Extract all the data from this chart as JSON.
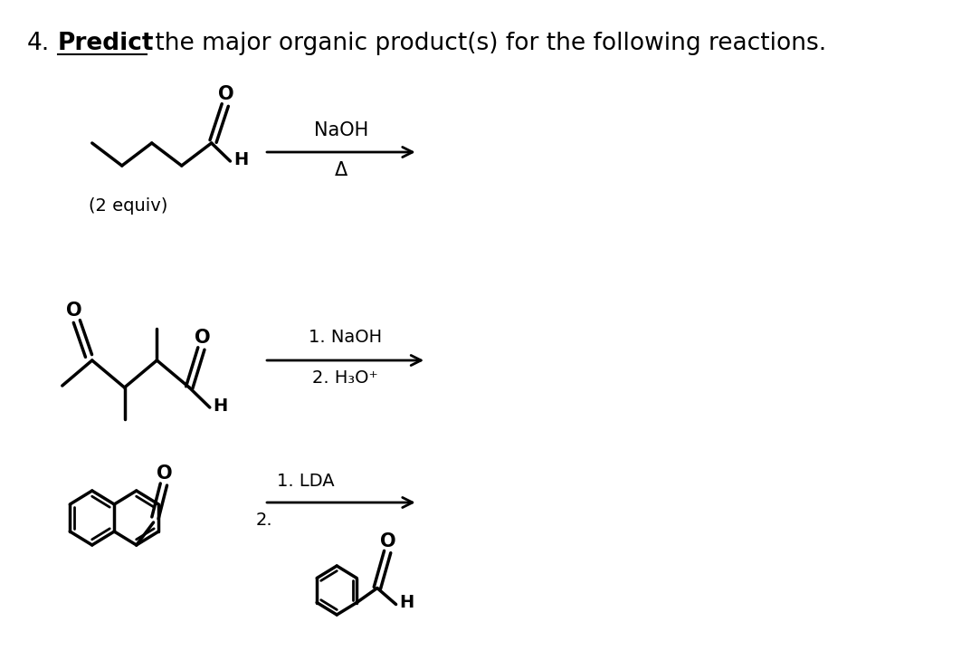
{
  "title_number": "4.",
  "title_underlined": "Predict",
  "title_rest": " the major organic product(s) for the following reactions.",
  "bg_color": "#ffffff",
  "text_color": "#000000",
  "figsize": [
    10.62,
    7.4
  ],
  "dpi": 100,
  "r1_naoh": "NaOH",
  "r1_delta": "Δ",
  "r1_equiv": "(2 equiv)",
  "r2_step1": "1. NaOH",
  "r2_step2": "2. H₃O⁺",
  "r3_step1": "1. LDA",
  "r3_step2": "2."
}
